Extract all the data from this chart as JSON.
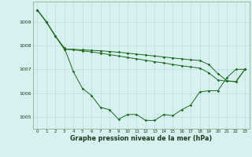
{
  "hours": [
    0,
    1,
    2,
    3,
    4,
    5,
    6,
    7,
    8,
    9,
    10,
    11,
    12,
    13,
    14,
    15,
    16,
    17,
    18,
    19,
    20,
    21,
    22,
    23
  ],
  "series1": [
    1009.5,
    1009.0,
    1008.4,
    1007.9,
    1006.9,
    1006.2,
    1005.9,
    1005.4,
    1005.3,
    1004.9,
    1005.1,
    1005.1,
    1004.85,
    1004.85,
    1005.1,
    1005.05,
    1005.3,
    1005.5,
    1006.05,
    1006.1,
    1006.1,
    1006.65,
    1007.0,
    1007.0
  ],
  "series2": [
    1009.5,
    1009.0,
    1008.4,
    1007.85,
    1007.82,
    1007.78,
    1007.73,
    1007.68,
    1007.62,
    1007.56,
    1007.5,
    1007.44,
    1007.38,
    1007.32,
    1007.27,
    1007.2,
    1007.15,
    1007.1,
    1007.05,
    1006.85,
    1006.55,
    1006.5,
    1006.48,
    1007.0
  ],
  "series3": [
    1009.5,
    1009.0,
    1008.4,
    1007.85,
    1007.84,
    1007.82,
    1007.8,
    1007.78,
    1007.75,
    1007.72,
    1007.68,
    1007.64,
    1007.6,
    1007.56,
    1007.52,
    1007.48,
    1007.44,
    1007.4,
    1007.37,
    1007.2,
    1006.82,
    1006.52,
    1006.48,
    1007.0
  ],
  "line_color": "#1a6b1a",
  "bg_color": "#d8f0f0",
  "grid_color": "#b8dede",
  "ylabel_values": [
    1005,
    1006,
    1007,
    1008,
    1009
  ],
  "ylim": [
    1004.5,
    1009.85
  ],
  "xlabel": "Graphe pression niveau de la mer (hPa)",
  "xlim": [
    -0.5,
    23.5
  ]
}
